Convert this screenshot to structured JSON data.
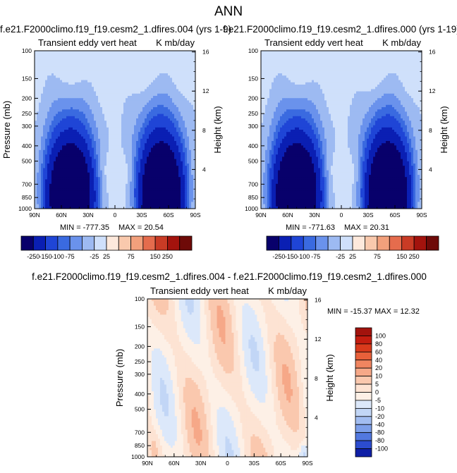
{
  "page_title": "ANN",
  "chart_data": [
    {
      "type": "heatmap",
      "title": "f.e21.F2000climo.f19_f19.cesm2_1.dfires.004 (yrs 1-9)",
      "left_string": "Transient eddy vert heat",
      "right_string": "K mb/day",
      "ylabel": "Pressure (mb)",
      "ylabel_right": "Height (km)",
      "xticks": [
        "90N",
        "60N",
        "30N",
        "0",
        "30S",
        "60S",
        "90S"
      ],
      "yticks": [
        "100",
        "150",
        "200",
        "250",
        "300",
        "400",
        "500",
        "700",
        "850",
        "1000"
      ],
      "yticks_right": [
        "16",
        "12",
        "8",
        "4"
      ],
      "min_label": "MIN = -777.35",
      "max_label": "MAX =  20.54",
      "stats": {
        "min": -777.35,
        "max": 20.54
      },
      "levels": [
        -250,
        -150,
        -100,
        -75,
        -50,
        -25,
        25,
        50,
        75,
        100,
        150,
        250
      ],
      "colorbar_labels": [
        "-250",
        "-150",
        "-100",
        "-75",
        "-25",
        "25",
        "75",
        "150",
        "250"
      ],
      "colors": [
        "#08006b",
        "#0a1fb3",
        "#1f45d6",
        "#3a6ae0",
        "#6a92ec",
        "#9dbaf2",
        "#cfe0fb",
        "#fde9dc",
        "#f9c9ad",
        "#f2a07c",
        "#e56c4d",
        "#c93b25",
        "#a3130d",
        "#6e0a08"
      ]
    },
    {
      "type": "heatmap",
      "title": "f.e21.F2000climo.f19_f19.cesm2_1.dfires.000 (yrs 1-19)",
      "left_string": "Transient eddy vert heat",
      "right_string": "K mb/day",
      "ylabel": "Height (km)",
      "yticks_right": [
        "16",
        "12",
        "8",
        "4"
      ],
      "xticks": [
        "90N",
        "60N",
        "30N",
        "0",
        "30S",
        "60S",
        "90S"
      ],
      "yticks": [
        "100",
        "150",
        "200",
        "250",
        "300",
        "400",
        "500",
        "700",
        "850",
        "1000"
      ],
      "min_label": "MIN = -771.63",
      "max_label": "MAX =  20.31",
      "stats": {
        "min": -771.63,
        "max": 20.31
      },
      "levels": [
        -250,
        -150,
        -100,
        -75,
        -50,
        -25,
        25,
        50,
        75,
        100,
        150,
        250
      ],
      "colorbar_labels": [
        "-250",
        "-150",
        "-100",
        "-75",
        "-25",
        "25",
        "75",
        "150",
        "250"
      ],
      "colors": [
        "#08006b",
        "#0a1fb3",
        "#1f45d6",
        "#3a6ae0",
        "#6a92ec",
        "#9dbaf2",
        "#cfe0fb",
        "#fde9dc",
        "#f9c9ad",
        "#f2a07c",
        "#e56c4d",
        "#c93b25",
        "#a3130d",
        "#6e0a08"
      ]
    },
    {
      "type": "heatmap",
      "title": "f.e21.F2000climo.f19_f19.cesm2_1.dfires.004 - f.e21.F2000climo.f19_f19.cesm2_1.dfires.000",
      "left_string": "Transient eddy vert heat",
      "right_string": "K mb/day",
      "ylabel": "Pressure (mb)",
      "ylabel_right": "Height (km)",
      "xticks": [
        "90N",
        "60N",
        "30N",
        "0",
        "30S",
        "60S",
        "90S"
      ],
      "yticks": [
        "100",
        "150",
        "200",
        "250",
        "300",
        "400",
        "500",
        "700",
        "850",
        "1000"
      ],
      "yticks_right": [
        "16",
        "12",
        "8",
        "4"
      ],
      "stats_label": "MIN = -15.37   MAX =  12.32",
      "stats": {
        "min": -15.37,
        "max": 12.32
      },
      "colorbar_labels": [
        "100",
        "80",
        "60",
        "40",
        "20",
        "10",
        "5",
        "0",
        "-5",
        "-10",
        "-20",
        "-40",
        "-80",
        "-80",
        "-100"
      ],
      "colors": [
        "#a3130d",
        "#c41d10",
        "#d93a1c",
        "#e8603a",
        "#f08560",
        "#f6a888",
        "#fac8ae",
        "#fde3d3",
        "#fdf0e6",
        "#dce8fa",
        "#c2d6f6",
        "#a2bdf1",
        "#7d9fea",
        "#5278df",
        "#2c4ccf",
        "#0f1fa6"
      ]
    }
  ]
}
